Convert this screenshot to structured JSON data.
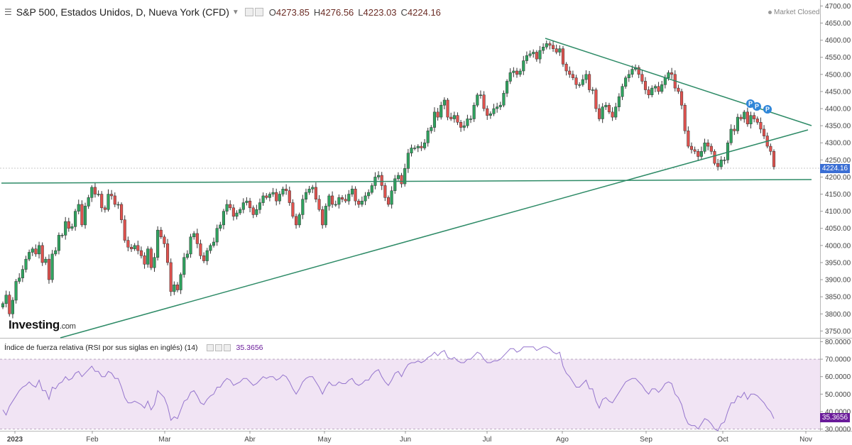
{
  "header": {
    "title": "S&P 500, Estados Unidos, D, Nueva York (CFD)",
    "open_key": "O",
    "open": "4273.85",
    "high_key": "H",
    "high": "4276.56",
    "low_key": "L",
    "low": "4223.03",
    "close_key": "C",
    "close": "4224.16",
    "market_status": "Market Closed"
  },
  "logo": {
    "brand": "Investing",
    "domain": ".com"
  },
  "rsi": {
    "title": "Índice de fuerza relativa (RSI por sus siglas en inglés) (14)",
    "value": "35.3656"
  },
  "colors": {
    "up": "#2fa35f",
    "down": "#e0524e",
    "trendline": "#2e8b67",
    "rsi_line": "#9575cd",
    "rsi_band": "#f1e4f4",
    "last_price_bg": "#3b6fd4",
    "rsi_last_bg": "#6a1b9a"
  },
  "pivot_flags": [
    "P",
    "P",
    "P"
  ],
  "chart_data": [
    {
      "type": "candlestick",
      "title": "S&P 500, Estados Unidos, D, Nueva York (CFD)",
      "y_ticks": [
        "4700.00",
        "4650.00",
        "4600.00",
        "4550.00",
        "4500.00",
        "4450.00",
        "4400.00",
        "4350.00",
        "4300.00",
        "4250.00",
        "4200.00",
        "4150.00",
        "4100.00",
        "4050.00",
        "4000.00",
        "3950.00",
        "3900.00",
        "3850.00",
        "3800.00",
        "3750.00"
      ],
      "ylim": [
        3730,
        4705
      ],
      "x_ticks": [
        "2023",
        "Feb",
        "Mar",
        "Abr",
        "May",
        "Jun",
        "Jul",
        "Ago",
        "Sep",
        "Oct",
        "Nov"
      ],
      "last_value": "4224.16",
      "series": [
        {
          "close": [
            3830,
            3855,
            3800,
            3840,
            3895,
            3905,
            3930,
            3960,
            3980,
            3990,
            3975,
            4000,
            3950,
            3960,
            3900,
            3975,
            3985,
            4030,
            4030,
            4070,
            4050,
            4055,
            4100,
            4120,
            4060,
            4115,
            4140,
            4170,
            4150,
            4150,
            4110,
            4105,
            4150,
            4145,
            4120,
            4120,
            4075,
            4015,
            3995,
            3990,
            4000,
            3985,
            3970,
            3945,
            3990,
            3935,
            3965,
            4045,
            4025,
            4005,
            3950,
            3865,
            3885,
            3870,
            3915,
            3965,
            3975,
            4025,
            4035,
            4005,
            3970,
            3955,
            3985,
            4000,
            4010,
            4050,
            4060,
            4100,
            4120,
            4110,
            4085,
            4095,
            4105,
            4125,
            4130,
            4110,
            4090,
            4105,
            4125,
            4145,
            4140,
            4150,
            4155,
            4130,
            4150,
            4165,
            4160,
            4125,
            4085,
            4060,
            4090,
            4135,
            4155,
            4165,
            4170,
            4135,
            4105,
            4060,
            4115,
            4145,
            4120,
            4120,
            4140,
            4135,
            4130,
            4150,
            4165,
            4130,
            4120,
            4130,
            4145,
            4155,
            4175,
            4200,
            4205,
            4175,
            4140,
            4120,
            4160,
            4195,
            4205,
            4180,
            4225,
            4270,
            4285,
            4285,
            4290,
            4285,
            4300,
            4335,
            4345,
            4390,
            4375,
            4410,
            4425,
            4375,
            4370,
            4380,
            4360,
            4345,
            4350,
            4370,
            4370,
            4410,
            4440,
            4440,
            4400,
            4380,
            4385,
            4400,
            4405,
            4410,
            4445,
            4480,
            4505,
            4510,
            4500,
            4510,
            4540,
            4555,
            4560,
            4565,
            4545,
            4570,
            4580,
            4590,
            4585,
            4575,
            4565,
            4575,
            4530,
            4510,
            4500,
            4490,
            4470,
            4470,
            4485,
            4500,
            4455,
            4455,
            4400,
            4370,
            4405,
            4410,
            4390,
            4375,
            4405,
            4435,
            4465,
            4490,
            4500,
            4515,
            4520,
            4500,
            4480,
            4455,
            4440,
            4460,
            4465,
            4450,
            4470,
            4490,
            4505,
            4500,
            4460,
            4450,
            4410,
            4335,
            4290,
            4280,
            4275,
            4260,
            4275,
            4300,
            4290,
            4275,
            4240,
            4230,
            4250,
            4250,
            4300,
            4340,
            4335,
            4375,
            4370,
            4390,
            4355,
            4380,
            4370,
            4360,
            4340,
            4320,
            4290,
            4275,
            4230
          ]
        }
      ]
    },
    {
      "type": "line",
      "title": "Índice de fuerza relativa (RSI por sus siglas en inglés) (14)",
      "y_ticks": [
        "80.0000",
        "70.0000",
        "60.0000",
        "50.0000",
        "40.0000",
        "30.0000"
      ],
      "ylim": [
        29,
        81
      ],
      "band": [
        30,
        70
      ],
      "last_value": "35.3656",
      "series": [
        {
          "name": "RSI",
          "values": [
            41,
            38,
            43,
            46,
            49,
            52,
            54,
            55,
            57,
            55,
            54,
            58,
            52,
            52,
            47,
            54,
            53,
            56,
            57,
            60,
            58,
            59,
            62,
            63,
            60,
            62,
            64,
            66,
            63,
            63,
            60,
            60,
            63,
            62,
            59,
            59,
            54,
            48,
            45,
            45,
            46,
            45,
            44,
            42,
            46,
            41,
            44,
            52,
            50,
            48,
            43,
            35,
            37,
            36,
            41,
            46,
            47,
            51,
            52,
            49,
            45,
            44,
            47,
            49,
            50,
            54,
            54,
            57,
            59,
            58,
            55,
            56,
            57,
            59,
            59,
            57,
            55,
            56,
            58,
            60,
            59,
            60,
            60,
            58,
            59,
            61,
            60,
            57,
            53,
            50,
            53,
            57,
            59,
            60,
            60,
            57,
            54,
            50,
            54,
            57,
            55,
            55,
            57,
            56,
            56,
            58,
            59,
            56,
            55,
            56,
            58,
            58,
            61,
            63,
            64,
            60,
            57,
            55,
            58,
            62,
            63,
            60,
            64,
            67,
            68,
            68,
            69,
            68,
            69,
            71,
            72,
            74,
            72,
            74,
            75,
            71,
            70,
            71,
            69,
            68,
            68,
            70,
            70,
            72,
            74,
            73,
            70,
            68,
            68,
            69,
            69,
            70,
            72,
            74,
            76,
            76,
            74,
            75,
            77,
            77,
            77,
            77,
            75,
            76,
            77,
            77,
            76,
            74,
            73,
            74,
            66,
            62,
            60,
            57,
            54,
            54,
            56,
            58,
            53,
            53,
            46,
            42,
            47,
            48,
            46,
            45,
            48,
            51,
            54,
            57,
            58,
            59,
            59,
            57,
            55,
            52,
            50,
            53,
            53,
            51,
            53,
            56,
            57,
            56,
            50,
            48,
            44,
            37,
            33,
            32,
            32,
            30,
            33,
            36,
            35,
            33,
            30,
            29,
            33,
            34,
            40,
            45,
            45,
            49,
            48,
            51,
            47,
            50,
            50,
            49,
            47,
            45,
            42,
            40,
            36
          ]
        }
      ]
    }
  ]
}
